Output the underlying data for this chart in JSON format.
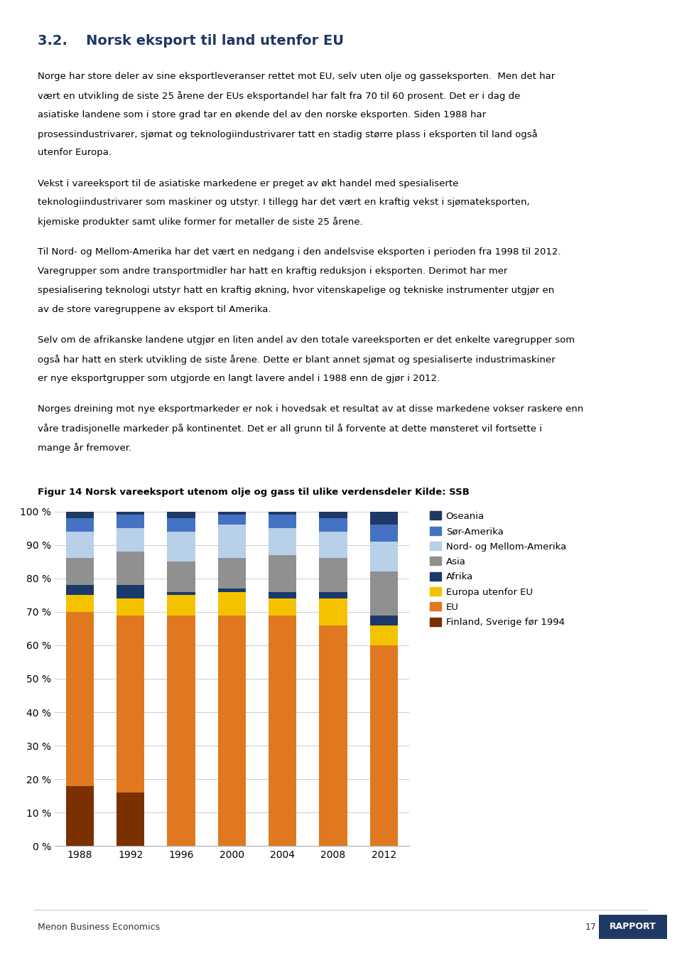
{
  "years": [
    1988,
    1992,
    1996,
    2000,
    2004,
    2008,
    2012
  ],
  "series": {
    "Finland, Sverige før 1994": [
      18,
      16,
      0,
      0,
      0,
      0,
      0
    ],
    "EU": [
      52,
      53,
      69,
      69,
      69,
      66,
      60
    ],
    "Europa utenfor EU": [
      5,
      5,
      6,
      7,
      5,
      8,
      6
    ],
    "Afrika": [
      3,
      4,
      1,
      1,
      2,
      2,
      3
    ],
    "Asia": [
      8,
      10,
      9,
      9,
      11,
      10,
      13
    ],
    "Nord- og Mellom-Amerika": [
      8,
      7,
      9,
      10,
      8,
      8,
      9
    ],
    "Sør-Amerika": [
      4,
      4,
      4,
      3,
      4,
      4,
      5
    ],
    "Oseania": [
      2,
      1,
      2,
      1,
      1,
      2,
      4
    ]
  },
  "colors": {
    "Finland, Sverige før 1994": "#7B3000",
    "EU": "#E07820",
    "Europa utenfor EU": "#F5C200",
    "Afrika": "#1A3A6B",
    "Asia": "#909090",
    "Nord- og Mellom-Amerika": "#B8D0E8",
    "Sør-Amerika": "#4472C4",
    "Oseania": "#1F3864"
  },
  "series_order": [
    "Finland, Sverige før 1994",
    "EU",
    "Europa utenfor EU",
    "Afrika",
    "Asia",
    "Nord- og Mellom-Amerika",
    "Sør-Amerika",
    "Oseania"
  ],
  "legend_order": [
    "Oseania",
    "Sør-Amerika",
    "Nord- og Mellom-Amerika",
    "Asia",
    "Afrika",
    "Europa utenfor EU",
    "EU",
    "Finland, Sverige før 1994"
  ],
  "ytick_labels": [
    "0 %",
    "10 %",
    "20 %",
    "30 %",
    "40 %",
    "50 %",
    "60 %",
    "70 %",
    "80 %",
    "90 %",
    "100 %"
  ],
  "chart_title": "Figur 14 Norsk vareeksport utenom olje og gass til ulike verdensdeler Kilde: SSB",
  "section_title": "3.2.  Norsk eksport til land utenfor EU",
  "body_paragraphs": [
    "Norge har store deler av sine eksportleveranser rettet mot EU, selv uten olje og gasseksporten.  Men det har vært en utvikling de siste 25 årene der EUs eksportandel har falt fra 70 til 60 prosent. Det er i dag de asiatiske landene som i store grad tar en økende del av den norske eksporten. Siden 1988 har prosessindustrivarer, sjømat og teknologiindustrivarer tatt en stadig større plass i eksporten til land også utenfor Europa.",
    "Vekst i vareeksport til de asiatiske markedene er preget av økt handel med spesialiserte teknologiindustrivarer som maskiner og utstyr. I tillegg har det vært en kraftig vekst i sjømateksporten, kjemiske produkter samt ulike former for metaller de siste 25 årene.",
    "Til Nord- og Mellom-Amerika har det vært en nedgang i den andelsvise eksporten i perioden fra 1998 til 2012. Varegrupper som andre transportmidler har hatt en kraftig reduksjon i eksporten. Derimot har mer spesialisering teknologi utstyr hatt en kraftig økning, hvor vitenskapelige og tekniske instrumenter utgjør en av de store varegruppene av eksport til Amerika.",
    "Selv om de afrikanske landene utgjør en liten andel av den totale vareeksporten er det enkelte varegrupper som også har hatt en sterk utvikling de siste årene. Dette er blant annet sjømat og spesialiserte industrimaskiner er nye eksportgrupper som utgjorde en langt lavere andel i 1988 enn de gjør i 2012.",
    "Norges dreining mot nye eksportmarkeder er nok i hovedsak et resultat av at disse markedene vokser raskere enn våre tradisjonelle markeder på kontinentet. Det er all grunn til å forvente at dette mønsteret vil fortsette i mange år fremover."
  ],
  "footer_left": "Menon Business Economics",
  "footer_page": "17",
  "footer_tag": "RAPPORT",
  "footer_tag_color": "#1F3864",
  "background_color": "#ffffff"
}
